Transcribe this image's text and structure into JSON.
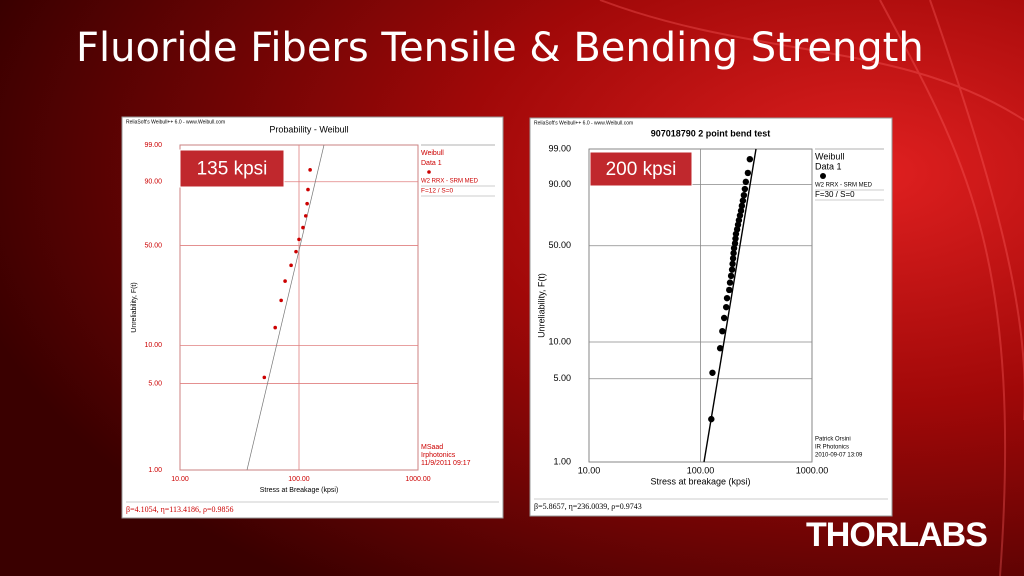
{
  "slide": {
    "title": "Fluoride Fibers Tensile & Bending Strength",
    "logo": "THORLABS"
  },
  "chart_data": [
    {
      "type": "scatter",
      "header": "ReliaSoft's Weibull++ 6.0 - www.Weibull.com",
      "title": "Probability - Weibull",
      "callout": "135 kpsi",
      "xlabel": "Stress at Breakage (kpsi)",
      "ylabel": "Unreliability, F(t)",
      "xscale": "log",
      "yscale": "weibull",
      "grid": true,
      "xlim": [
        10,
        1000
      ],
      "xticks": [
        {
          "value": 10,
          "label": "10.00"
        },
        {
          "value": 100,
          "label": "100.00"
        },
        {
          "value": 1000,
          "label": "1000.00"
        }
      ],
      "ylim": [
        1,
        99
      ],
      "yticks": [
        {
          "value": 1,
          "label": "1.00"
        },
        {
          "value": 5,
          "label": "5.00"
        },
        {
          "value": 10,
          "label": "10.00"
        },
        {
          "value": 50,
          "label": "50.00"
        },
        {
          "value": 90,
          "label": "90.00"
        },
        {
          "value": 99,
          "label": "99.00"
        }
      ],
      "x": [
        51.1,
        63.1,
        70.8,
        76.4,
        85.8,
        94.4,
        100,
        108,
        114,
        117,
        119,
        124
      ],
      "series": [
        {
          "name": "Data 1",
          "color": "#cc0000",
          "values": [
            5.6,
            13.7,
            21.8,
            29.8,
            37.9,
            46.0,
            54.0,
            62.1,
            70.2,
            78.2,
            86.3,
            94.4
          ]
        }
      ],
      "legend_title": "Weibull",
      "legend_lines": [
        "W2 RRX - SRM MED",
        "F=12 / S=0"
      ],
      "notes": [
        "MSaad",
        "Irphotonics",
        "11/9/2011 09:17"
      ],
      "footer": "β=4.1054, η=113.4186, ρ=0.9856"
    },
    {
      "type": "scatter",
      "header": "ReliaSoft's Weibull++ 6.0 - www.Weibull.com",
      "title": "907018790 2 point bend test",
      "callout": "200 kpsi",
      "xlabel": "Stress at breakage (kpsi)",
      "ylabel": "Unreliability, F(t)",
      "xscale": "log",
      "yscale": "weibull",
      "grid": true,
      "xlim": [
        10,
        1000
      ],
      "xticks": [
        {
          "value": 10,
          "label": "10.00"
        },
        {
          "value": 100,
          "label": "100.00"
        },
        {
          "value": 1000,
          "label": "1000.00"
        }
      ],
      "ylim": [
        1,
        99
      ],
      "yticks": [
        {
          "value": 1,
          "label": "1.00"
        },
        {
          "value": 5,
          "label": "5.00"
        },
        {
          "value": 10,
          "label": "10.00"
        },
        {
          "value": 50,
          "label": "50.00"
        },
        {
          "value": 90,
          "label": "90.00"
        },
        {
          "value": 99,
          "label": "99.00"
        }
      ],
      "x": [
        125,
        128,
        150,
        157,
        163,
        170,
        173,
        181,
        184,
        188,
        192,
        194,
        196,
        198,
        200,
        204,
        206,
        208,
        213,
        217,
        221,
        226,
        231,
        235,
        240,
        245,
        250,
        255,
        266,
        277
      ],
      "series": [
        {
          "name": "Data 1",
          "color": "#000000",
          "values": [
            2.3,
            5.6,
            8.9,
            12.2,
            15.5,
            18.8,
            22.0,
            25.3,
            28.6,
            31.9,
            35.2,
            38.5,
            41.8,
            45.1,
            48.4,
            51.6,
            54.9,
            58.2,
            61.5,
            64.8,
            68.1,
            71.4,
            74.7,
            78.0,
            81.3,
            84.5,
            87.8,
            91.1,
            94.4,
            97.7
          ]
        }
      ],
      "legend_title": "Weibull",
      "legend_lines": [
        "W2 RRX - SRM MED",
        "F=30 / S=0"
      ],
      "notes": [
        "Patrick Orsini",
        "IR Photonics",
        "2010-09-07 13:09"
      ],
      "footer": "β=5.8657, η=236.0039, ρ=0.9743"
    }
  ]
}
